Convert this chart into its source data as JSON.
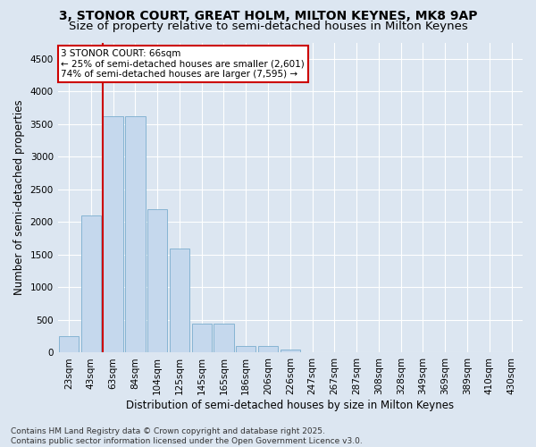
{
  "title_line1": "3, STONOR COURT, GREAT HOLM, MILTON KEYNES, MK8 9AP",
  "title_line2": "Size of property relative to semi-detached houses in Milton Keynes",
  "xlabel": "Distribution of semi-detached houses by size in Milton Keynes",
  "ylabel": "Number of semi-detached properties",
  "bin_labels": [
    "23sqm",
    "43sqm",
    "63sqm",
    "84sqm",
    "104sqm",
    "125sqm",
    "145sqm",
    "165sqm",
    "186sqm",
    "206sqm",
    "226sqm",
    "247sqm",
    "267sqm",
    "287sqm",
    "308sqm",
    "328sqm",
    "349sqm",
    "369sqm",
    "389sqm",
    "410sqm",
    "430sqm"
  ],
  "bar_values": [
    250,
    2100,
    3625,
    3625,
    2200,
    1600,
    450,
    450,
    100,
    100,
    50,
    0,
    0,
    0,
    0,
    0,
    0,
    0,
    0,
    0,
    0
  ],
  "bar_color": "#c5d8ed",
  "bar_edge_color": "#7baece",
  "vline_color": "#cc0000",
  "annotation_text": "3 STONOR COURT: 66sqm\n← 25% of semi-detached houses are smaller (2,601)\n74% of semi-detached houses are larger (7,595) →",
  "annotation_box_color": "#ffffff",
  "annotation_box_edge": "#cc0000",
  "ylim": [
    0,
    4750
  ],
  "yticks": [
    0,
    500,
    1000,
    1500,
    2000,
    2500,
    3000,
    3500,
    4000,
    4500
  ],
  "background_color": "#dce6f1",
  "grid_color": "#ffffff",
  "footer_text": "Contains HM Land Registry data © Crown copyright and database right 2025.\nContains public sector information licensed under the Open Government Licence v3.0.",
  "title_fontsize": 10,
  "subtitle_fontsize": 9.5,
  "axis_label_fontsize": 8.5,
  "tick_fontsize": 7.5,
  "annotation_fontsize": 7.5,
  "footer_fontsize": 6.5,
  "vline_bin_index": 2
}
